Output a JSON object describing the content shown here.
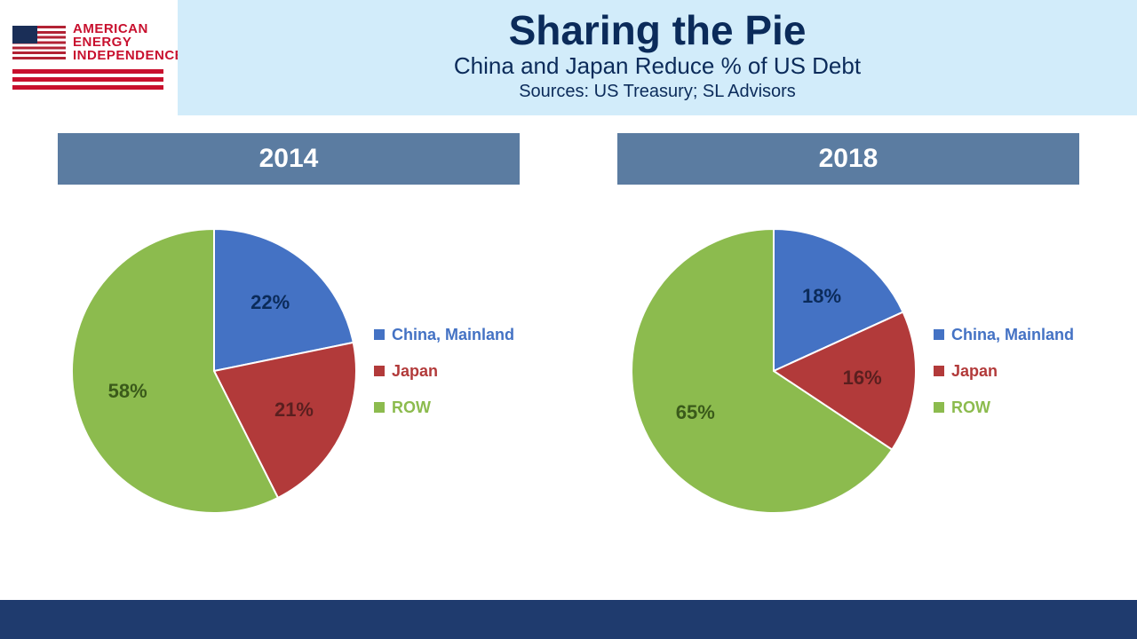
{
  "logo": {
    "line1": "AMERICAN",
    "line2": "ENERGY",
    "line3": "INDEPENDENCE",
    "text_color": "#c8102e",
    "rule_color": "#c8102e"
  },
  "header": {
    "title": "Sharing the Pie",
    "subtitle": "China and Japan Reduce % of US Debt",
    "sources": "Sources: US Treasury; SL Advisors",
    "title_color": "#0b2b5a",
    "band_bg": "#d2ecfa"
  },
  "year_banner": {
    "bg": "#5b7ca1",
    "text_color": "#ffffff"
  },
  "legend_labels": {
    "china": "China, Mainland",
    "japan": "Japan",
    "row": "ROW"
  },
  "colors": {
    "china": "#4472c4",
    "japan": "#b23a3a",
    "row": "#8cbb4e",
    "slice_border": "#ffffff",
    "footer": "#1f3b6e"
  },
  "charts": [
    {
      "year": "2014",
      "slices": [
        {
          "key": "china",
          "value": 22,
          "label": "22%",
          "label_color": "#0b2b5a"
        },
        {
          "key": "japan",
          "value": 21,
          "label": "21%",
          "label_color": "#5a1f1f"
        },
        {
          "key": "row",
          "value": 58,
          "label": "58%",
          "label_color": "#3a5a1a"
        }
      ]
    },
    {
      "year": "2018",
      "slices": [
        {
          "key": "china",
          "value": 18,
          "label": "18%",
          "label_color": "#0b2b5a"
        },
        {
          "key": "japan",
          "value": 16,
          "label": "16%",
          "label_color": "#5a1f1f"
        },
        {
          "key": "row",
          "value": 65,
          "label": "65%",
          "label_color": "#3a5a1a"
        }
      ]
    }
  ],
  "pie": {
    "radius": 160,
    "label_radius": 100,
    "start_angle_deg": -90,
    "border_width": 2
  }
}
